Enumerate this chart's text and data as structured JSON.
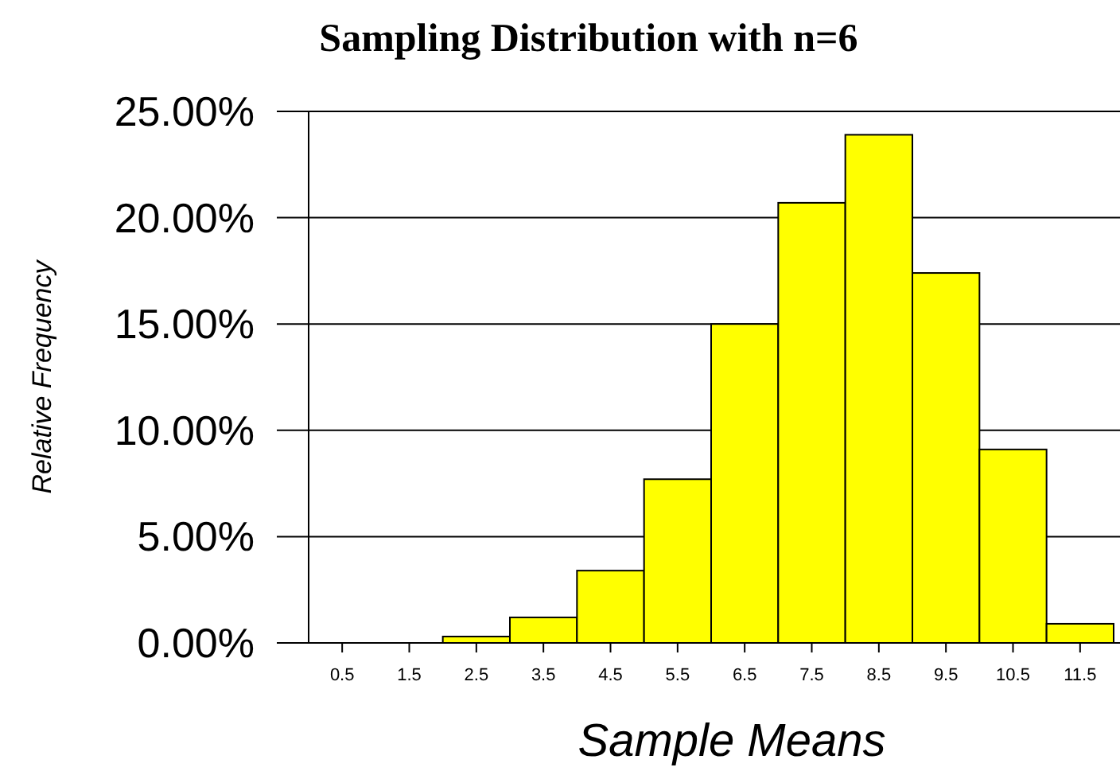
{
  "chart_data": {
    "type": "bar",
    "title": "Sampling Distribution with n=6",
    "xlabel": "Sample Means",
    "ylabel": "Relative Frequency",
    "categories": [
      "0.5",
      "1.5",
      "2.5",
      "3.5",
      "4.5",
      "5.5",
      "6.5",
      "7.5",
      "8.5",
      "9.5",
      "10.5",
      "11.5"
    ],
    "values": [
      0,
      0,
      0.3,
      1.2,
      3.4,
      7.7,
      15.0,
      20.7,
      23.9,
      17.4,
      9.1,
      0.9
    ],
    "color": "#ffff00",
    "ylim": [
      0,
      25
    ],
    "yticks": [
      {
        "value": 0,
        "label": "0.00%"
      },
      {
        "value": 5,
        "label": "5.00%"
      },
      {
        "value": 10,
        "label": "10.00%"
      },
      {
        "value": 15,
        "label": "15.00%"
      },
      {
        "value": 20,
        "label": "20.00%"
      },
      {
        "value": 25,
        "label": "25.00%"
      }
    ],
    "grid": "y"
  }
}
